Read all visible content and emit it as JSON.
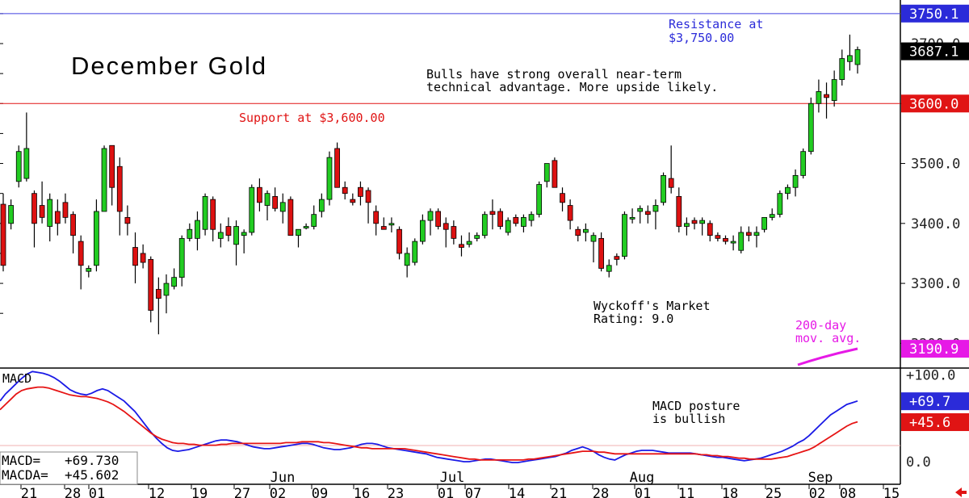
{
  "chart_data": [
    {
      "type": "candlestick",
      "title": "December Gold",
      "ylim": [
        3190,
        3755
      ],
      "yticks": [
        3300,
        3400,
        3500
      ],
      "ytick_labels": [
        "3300.0",
        "3400.0",
        "3500.0"
      ],
      "partial_tick_labels": [
        "3700.0",
        "3200.0"
      ],
      "price_tags": [
        {
          "label": "3750.1",
          "value": 3750.1,
          "color": "#2b2bd9"
        },
        {
          "label": "3687.1",
          "value": 3687.1,
          "color": "#000000"
        },
        {
          "label": "3600.0",
          "value": 3600.0,
          "color": "#e01414"
        },
        {
          "label": "3190.9",
          "value": 3190.9,
          "color": "#e619e6"
        }
      ],
      "lines": [
        {
          "name": "resistance",
          "value": 3750.0,
          "color": "#4040e0"
        },
        {
          "name": "support",
          "value": 3600.0,
          "color": "#e01414"
        }
      ],
      "annotations": {
        "resistance": [
          "Resistance at",
          "$3,750.00"
        ],
        "support": "Support at $3,600.00",
        "commentary": [
          "Bulls have strong overall near-term",
          "technical advantage. More upside likely."
        ],
        "rating": [
          "Wyckoff's Market",
          "Rating: 9.0"
        ],
        "ma": [
          "200-day",
          "mov. avg."
        ]
      },
      "up_color": "#22cc22",
      "down_color": "#dd1111",
      "candles": [
        [
          3432,
          3450,
          3320,
          3330
        ],
        [
          3400,
          3440,
          3390,
          3430
        ],
        [
          3470,
          3530,
          3460,
          3520
        ],
        [
          3475,
          3585,
          3470,
          3525
        ],
        [
          3450,
          3455,
          3360,
          3400
        ],
        [
          3430,
          3470,
          3400,
          3410
        ],
        [
          3395,
          3450,
          3370,
          3440
        ],
        [
          3420,
          3440,
          3380,
          3400
        ],
        [
          3435,
          3450,
          3400,
          3410
        ],
        [
          3415,
          3420,
          3350,
          3380
        ],
        [
          3370,
          3380,
          3290,
          3330
        ],
        [
          3320,
          3330,
          3310,
          3325
        ],
        [
          3330,
          3440,
          3320,
          3420
        ],
        [
          3420,
          3530,
          3420,
          3525
        ],
        [
          3530,
          3530,
          3430,
          3460
        ],
        [
          3495,
          3510,
          3380,
          3420
        ],
        [
          3410,
          3430,
          3380,
          3400
        ],
        [
          3360,
          3385,
          3300,
          3330
        ],
        [
          3350,
          3365,
          3325,
          3335
        ],
        [
          3340,
          3345,
          3235,
          3255
        ],
        [
          3290,
          3310,
          3215,
          3275
        ],
        [
          3280,
          3315,
          3250,
          3300
        ],
        [
          3295,
          3325,
          3290,
          3310
        ],
        [
          3310,
          3380,
          3295,
          3375
        ],
        [
          3375,
          3400,
          3370,
          3390
        ],
        [
          3375,
          3420,
          3355,
          3405
        ],
        [
          3390,
          3450,
          3380,
          3445
        ],
        [
          3440,
          3445,
          3370,
          3390
        ],
        [
          3375,
          3400,
          3360,
          3385
        ],
        [
          3395,
          3410,
          3370,
          3380
        ],
        [
          3365,
          3405,
          3330,
          3395
        ],
        [
          3380,
          3390,
          3350,
          3385
        ],
        [
          3385,
          3465,
          3380,
          3460
        ],
        [
          3460,
          3475,
          3420,
          3435
        ],
        [
          3430,
          3455,
          3405,
          3450
        ],
        [
          3445,
          3460,
          3420,
          3425
        ],
        [
          3420,
          3450,
          3400,
          3435
        ],
        [
          3440,
          3445,
          3380,
          3380
        ],
        [
          3380,
          3390,
          3360,
          3390
        ],
        [
          3395,
          3400,
          3390,
          3395
        ],
        [
          3395,
          3430,
          3390,
          3415
        ],
        [
          3420,
          3450,
          3410,
          3440
        ],
        [
          3440,
          3520,
          3430,
          3510
        ],
        [
          3525,
          3535,
          3460,
          3460
        ],
        [
          3460,
          3470,
          3440,
          3450
        ],
        [
          3440,
          3450,
          3430,
          3435
        ],
        [
          3460,
          3470,
          3430,
          3445
        ],
        [
          3455,
          3460,
          3400,
          3435
        ],
        [
          3420,
          3430,
          3380,
          3400
        ],
        [
          3395,
          3410,
          3390,
          3390
        ],
        [
          3400,
          3410,
          3385,
          3400
        ],
        [
          3390,
          3395,
          3340,
          3350
        ],
        [
          3330,
          3360,
          3310,
          3350
        ],
        [
          3335,
          3375,
          3330,
          3370
        ],
        [
          3370,
          3415,
          3365,
          3405
        ],
        [
          3405,
          3425,
          3380,
          3420
        ],
        [
          3420,
          3425,
          3390,
          3395
        ],
        [
          3400,
          3410,
          3360,
          3390
        ],
        [
          3395,
          3405,
          3365,
          3375
        ],
        [
          3365,
          3380,
          3345,
          3360
        ],
        [
          3365,
          3385,
          3360,
          3370
        ],
        [
          3375,
          3385,
          3370,
          3380
        ],
        [
          3380,
          3420,
          3375,
          3415
        ],
        [
          3420,
          3440,
          3390,
          3415
        ],
        [
          3420,
          3425,
          3390,
          3395
        ],
        [
          3385,
          3410,
          3380,
          3405
        ],
        [
          3410,
          3415,
          3395,
          3400
        ],
        [
          3395,
          3415,
          3385,
          3410
        ],
        [
          3405,
          3420,
          3395,
          3415
        ],
        [
          3415,
          3470,
          3410,
          3465
        ],
        [
          3470,
          3500,
          3460,
          3500
        ],
        [
          3505,
          3510,
          3460,
          3460
        ],
        [
          3450,
          3460,
          3420,
          3435
        ],
        [
          3430,
          3440,
          3390,
          3405
        ],
        [
          3390,
          3395,
          3370,
          3380
        ],
        [
          3385,
          3400,
          3370,
          3390
        ],
        [
          3370,
          3385,
          3335,
          3380
        ],
        [
          3375,
          3385,
          3320,
          3325
        ],
        [
          3320,
          3340,
          3310,
          3330
        ],
        [
          3345,
          3350,
          3330,
          3340
        ],
        [
          3345,
          3420,
          3340,
          3415
        ],
        [
          3410,
          3425,
          3400,
          3410
        ],
        [
          3420,
          3430,
          3400,
          3425
        ],
        [
          3420,
          3430,
          3400,
          3415
        ],
        [
          3420,
          3440,
          3390,
          3430
        ],
        [
          3435,
          3485,
          3430,
          3480
        ],
        [
          3475,
          3530,
          3450,
          3460
        ],
        [
          3445,
          3460,
          3385,
          3395
        ],
        [
          3395,
          3410,
          3380,
          3400
        ],
        [
          3405,
          3410,
          3390,
          3400
        ],
        [
          3400,
          3410,
          3380,
          3405
        ],
        [
          3400,
          3405,
          3370,
          3380
        ],
        [
          3380,
          3385,
          3370,
          3375
        ],
        [
          3375,
          3380,
          3365,
          3370
        ],
        [
          3370,
          3380,
          3355,
          3370
        ],
        [
          3355,
          3395,
          3350,
          3385
        ],
        [
          3385,
          3395,
          3370,
          3380
        ],
        [
          3380,
          3395,
          3360,
          3385
        ],
        [
          3390,
          3410,
          3385,
          3410
        ],
        [
          3410,
          3425,
          3405,
          3415
        ],
        [
          3415,
          3455,
          3410,
          3450
        ],
        [
          3450,
          3465,
          3440,
          3460
        ],
        [
          3460,
          3490,
          3445,
          3480
        ],
        [
          3480,
          3525,
          3475,
          3520
        ],
        [
          3520,
          3610,
          3515,
          3600
        ],
        [
          3600,
          3640,
          3585,
          3620
        ],
        [
          3615,
          3635,
          3575,
          3610
        ],
        [
          3605,
          3655,
          3595,
          3640
        ],
        [
          3640,
          3690,
          3630,
          3675
        ],
        [
          3670,
          3715,
          3655,
          3680
        ],
        [
          3665,
          3695,
          3650,
          3690
        ]
      ]
    },
    {
      "type": "line",
      "title": "MACD",
      "ylim": [
        -10,
        115
      ],
      "yticks": [
        100,
        0
      ],
      "ytick_labels": [
        "+100.0",
        "0.0"
      ],
      "partial_tick_labels": [
        "+50.0"
      ],
      "readouts": [
        {
          "label": "MACD=",
          "value": "+69.730"
        },
        {
          "label": "MACDA=",
          "value": "+45.602"
        }
      ],
      "tags": [
        {
          "label": "+69.7",
          "value": 69.7,
          "color": "#2b2bd9"
        },
        {
          "label": "+45.6",
          "value": 45.6,
          "color": "#e01414"
        }
      ],
      "annotation": [
        "MACD posture",
        "is bullish"
      ],
      "series": [
        {
          "name": "MACD",
          "color": "#1a1ae6",
          "values": [
            70,
            78,
            84,
            90,
            96,
            101,
            104,
            103,
            102,
            100,
            97,
            93,
            88,
            83,
            80,
            78,
            77,
            79,
            82,
            84,
            82,
            78,
            74,
            70,
            64,
            58,
            50,
            42,
            34,
            27,
            21,
            16,
            13,
            12,
            13,
            14,
            16,
            18,
            20,
            22,
            24,
            25,
            25,
            24,
            23,
            21,
            19,
            17,
            16,
            15,
            15,
            16,
            17,
            18,
            19,
            20,
            21,
            21,
            20,
            18,
            16,
            15,
            14,
            14,
            15,
            16,
            18,
            20,
            21,
            21,
            20,
            18,
            16,
            15,
            14,
            13,
            12,
            11,
            10,
            9,
            7,
            5,
            4,
            3,
            2,
            1,
            0,
            0,
            1,
            2,
            3,
            3,
            2,
            1,
            0,
            -1,
            -1,
            0,
            1,
            2,
            3,
            4,
            5,
            6,
            8,
            10,
            13,
            15,
            17,
            15,
            12,
            8,
            5,
            3,
            2,
            5,
            8,
            10,
            12,
            13,
            13,
            13,
            12,
            11,
            10,
            10,
            10,
            10,
            10,
            9,
            8,
            7,
            6,
            5,
            5,
            4,
            3,
            2,
            1,
            2,
            3,
            4,
            6,
            8,
            10,
            12,
            15,
            18,
            22,
            25,
            30,
            36,
            42,
            48,
            54,
            58,
            62,
            66,
            68,
            70
          ]
        },
        {
          "name": "MACDA",
          "color": "#e61414",
          "values": [
            60,
            66,
            72,
            78,
            82,
            84,
            85,
            86,
            86,
            85,
            83,
            81,
            79,
            77,
            76,
            75,
            75,
            74,
            73,
            71,
            69,
            66,
            62,
            58,
            53,
            48,
            43,
            38,
            33,
            29,
            26,
            24,
            22,
            21,
            21,
            20,
            20,
            19,
            19,
            19,
            19,
            20,
            20,
            21,
            21,
            21,
            21,
            21,
            21,
            21,
            21,
            21,
            21,
            22,
            22,
            22,
            23,
            23,
            23,
            23,
            22,
            22,
            21,
            20,
            19,
            18,
            17,
            16,
            16,
            15,
            15,
            15,
            15,
            15,
            15,
            15,
            14,
            13,
            12,
            11,
            10,
            9,
            8,
            7,
            6,
            5,
            4,
            3,
            3,
            2,
            2,
            2,
            2,
            2,
            2,
            2,
            2,
            2,
            3,
            3,
            4,
            5,
            6,
            7,
            8,
            9,
            10,
            11,
            12,
            12,
            12,
            11,
            11,
            10,
            9,
            9,
            9,
            9,
            9,
            9,
            9,
            9,
            9,
            9,
            9,
            9,
            9,
            9,
            9,
            9,
            8,
            8,
            7,
            7,
            6,
            6,
            5,
            4,
            4,
            3,
            3,
            3,
            3,
            3,
            4,
            5,
            6,
            8,
            10,
            12,
            14,
            17,
            21,
            25,
            29,
            33,
            37,
            41,
            44,
            46
          ]
        }
      ]
    }
  ],
  "x_axis": {
    "month_labels": [
      "Jun",
      "Jul",
      "Aug",
      "Sep"
    ],
    "day_labels": [
      "21",
      "28",
      "01",
      "12",
      "19",
      "27",
      "02",
      "09",
      "16",
      "23",
      "01",
      "07",
      "14",
      "21",
      "28",
      "01",
      "11",
      "18",
      "25",
      "02",
      "08",
      "15"
    ]
  },
  "nav_icon": "left-arrow-icon"
}
